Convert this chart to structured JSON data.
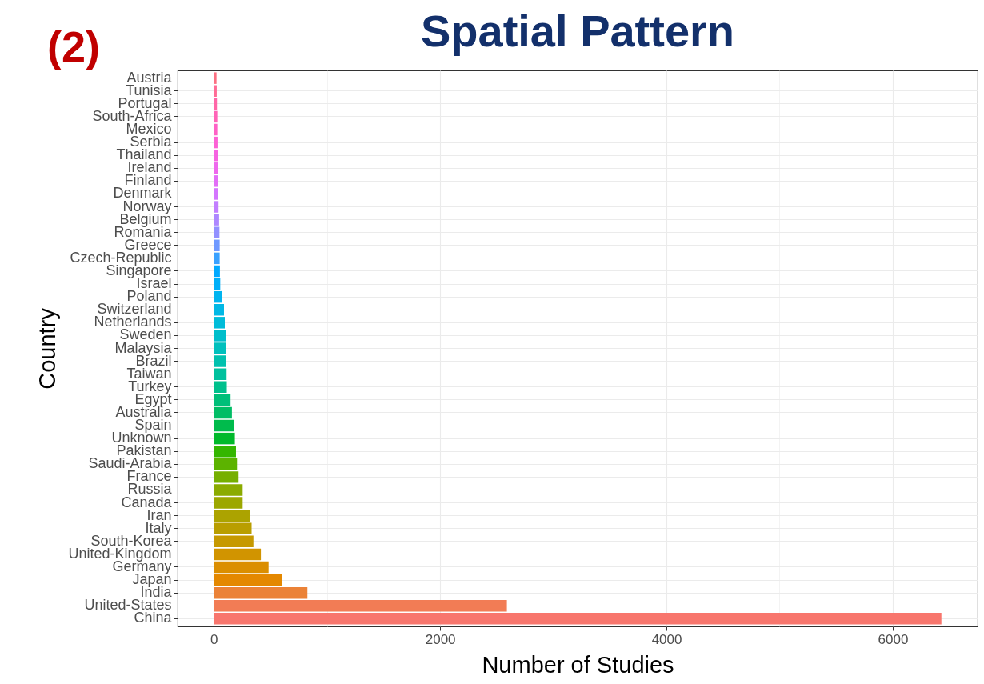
{
  "chart_data": {
    "type": "bar",
    "orientation": "horizontal",
    "title": "Spatial Pattern",
    "xlabel": "Number of Studies",
    "ylabel": "Country",
    "annotations": [
      "(2)"
    ],
    "categories": [
      "Austria",
      "Tunisia",
      "Portugal",
      "South-Africa",
      "Mexico",
      "Serbia",
      "Thailand",
      "Ireland",
      "Finland",
      "Denmark",
      "Norway",
      "Belgium",
      "Romania",
      "Greece",
      "Czech-Republic",
      "Singapore",
      "Israel",
      "Poland",
      "Switzerland",
      "Netherlands",
      "Sweden",
      "Malaysia",
      "Brazil",
      "Taiwan",
      "Turkey",
      "Egypt",
      "Australia",
      "Spain",
      "Unknown",
      "Pakistan",
      "Saudi-Arabia",
      "France",
      "Russia",
      "Canada",
      "Iran",
      "Italy",
      "South-Korea",
      "United-Kingdom",
      "Germany",
      "Japan",
      "India",
      "United-States",
      "China"
    ],
    "values": [
      24,
      26,
      28,
      31,
      31,
      33,
      35,
      38,
      38,
      40,
      42,
      47,
      50,
      52,
      52,
      54,
      57,
      73,
      90,
      97,
      105,
      106,
      110,
      113,
      115,
      148,
      160,
      182,
      186,
      196,
      205,
      219,
      255,
      255,
      323,
      334,
      350,
      416,
      484,
      601,
      827,
      2590,
      6430
    ],
    "colors": [
      "#fc7082",
      "#ff6b95",
      "#ff66a7",
      "#ff63b7",
      "#ff61c6",
      "#fc61d5",
      "#f663e1",
      "#ee68ed",
      "#e26ef7",
      "#d476fe",
      "#c27eff",
      "#ad87ff",
      "#9290ff",
      "#6f99ff",
      "#39a1ff",
      "#00a9ff",
      "#00aff8",
      "#00b4ef",
      "#00b8e5",
      "#00bcd9",
      "#00becb",
      "#00c0bd",
      "#00c1ae",
      "#00c19e",
      "#00c08c",
      "#00bf79",
      "#00bd65",
      "#00bb4c",
      "#00b92b",
      "#34b600",
      "#5cb300",
      "#76af00",
      "#8bab00",
      "#9ca700",
      "#aca300",
      "#b99e00",
      "#c69900",
      "#d19400",
      "#db8e00",
      "#e48800",
      "#eb8237",
      "#f27c55",
      "#f8766d"
    ],
    "xlim": [
      -320,
      6750
    ],
    "xticks": [
      0,
      {
        "value": 1000,
        "label": null
      },
      2000,
      {
        "value": 3000,
        "label": null
      },
      4000,
      {
        "value": 5000,
        "label": null
      },
      6000
    ],
    "grid": true
  }
}
